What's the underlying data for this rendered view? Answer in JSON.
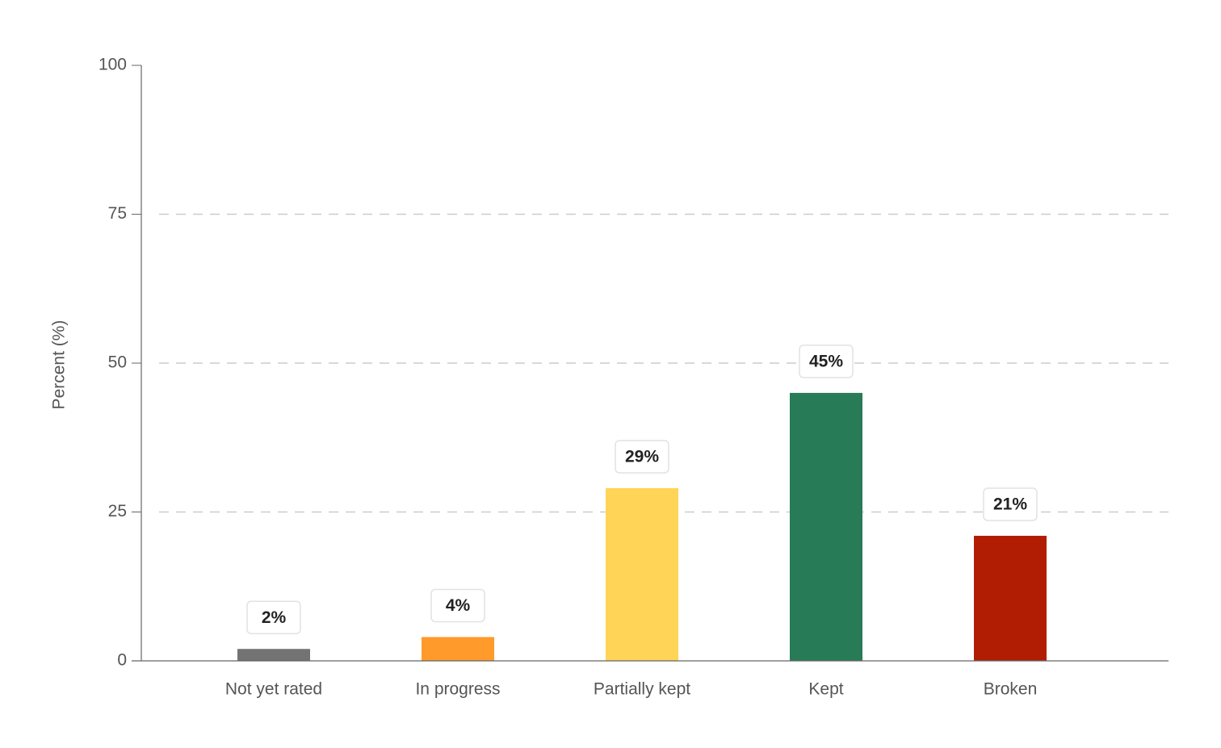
{
  "chart_data": {
    "type": "bar",
    "y_label": "Percent (%)",
    "categories": [
      "Not yet rated",
      "In progress",
      "Partially kept",
      "Kept",
      "Broken"
    ],
    "values": [
      2,
      4,
      29,
      45,
      21
    ],
    "value_labels": [
      "2%",
      "4%",
      "29%",
      "45%",
      "21%"
    ],
    "colors": [
      "#737373",
      "#ff9a2b",
      "#ffd457",
      "#277b56",
      "#b11d03"
    ],
    "ylim": [
      0,
      100
    ],
    "yticks": [
      0,
      25,
      50,
      75,
      100
    ],
    "grid": true
  }
}
